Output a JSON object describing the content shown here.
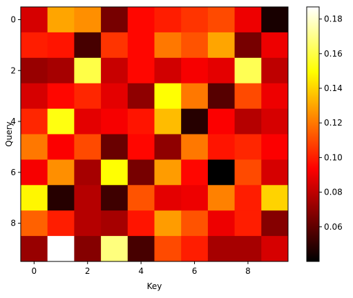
{
  "chart_data": {
    "type": "heatmap",
    "colormap": "hot",
    "xlabel": "Key",
    "ylabel": "Query",
    "x_ticks": [
      "0",
      "2",
      "4",
      "6",
      "8"
    ],
    "y_ticks": [
      "0",
      "2",
      "4",
      "6",
      "8"
    ],
    "colorbar": {
      "min": 0.04,
      "max": 0.187,
      "ticks": [
        "0.06",
        "0.08",
        "0.10",
        "0.12",
        "0.14",
        "0.16",
        "0.18"
      ]
    },
    "values": [
      [
        0.085,
        0.13,
        0.125,
        0.065,
        0.095,
        0.1,
        0.105,
        0.11,
        0.09,
        0.045
      ],
      [
        0.1,
        0.098,
        0.055,
        0.105,
        0.095,
        0.12,
        0.112,
        0.13,
        0.065,
        0.09
      ],
      [
        0.072,
        0.075,
        0.16,
        0.082,
        0.095,
        0.084,
        0.092,
        0.088,
        0.162,
        0.08
      ],
      [
        0.085,
        0.095,
        0.102,
        0.088,
        0.07,
        0.15,
        0.12,
        0.058,
        0.11,
        0.09
      ],
      [
        0.102,
        0.152,
        0.088,
        0.092,
        0.098,
        0.135,
        0.048,
        0.093,
        0.078,
        0.085
      ],
      [
        0.12,
        0.093,
        0.11,
        0.062,
        0.095,
        0.07,
        0.12,
        0.098,
        0.102,
        0.093
      ],
      [
        0.092,
        0.125,
        0.075,
        0.15,
        0.065,
        0.128,
        0.095,
        0.04,
        0.11,
        0.085
      ],
      [
        0.148,
        0.048,
        0.078,
        0.053,
        0.112,
        0.088,
        0.09,
        0.122,
        0.1,
        0.14
      ],
      [
        0.115,
        0.1,
        0.078,
        0.075,
        0.098,
        0.128,
        0.112,
        0.09,
        0.1,
        0.068
      ],
      [
        0.072,
        0.187,
        0.068,
        0.168,
        0.055,
        0.11,
        0.1,
        0.075,
        0.075,
        0.085
      ]
    ]
  }
}
